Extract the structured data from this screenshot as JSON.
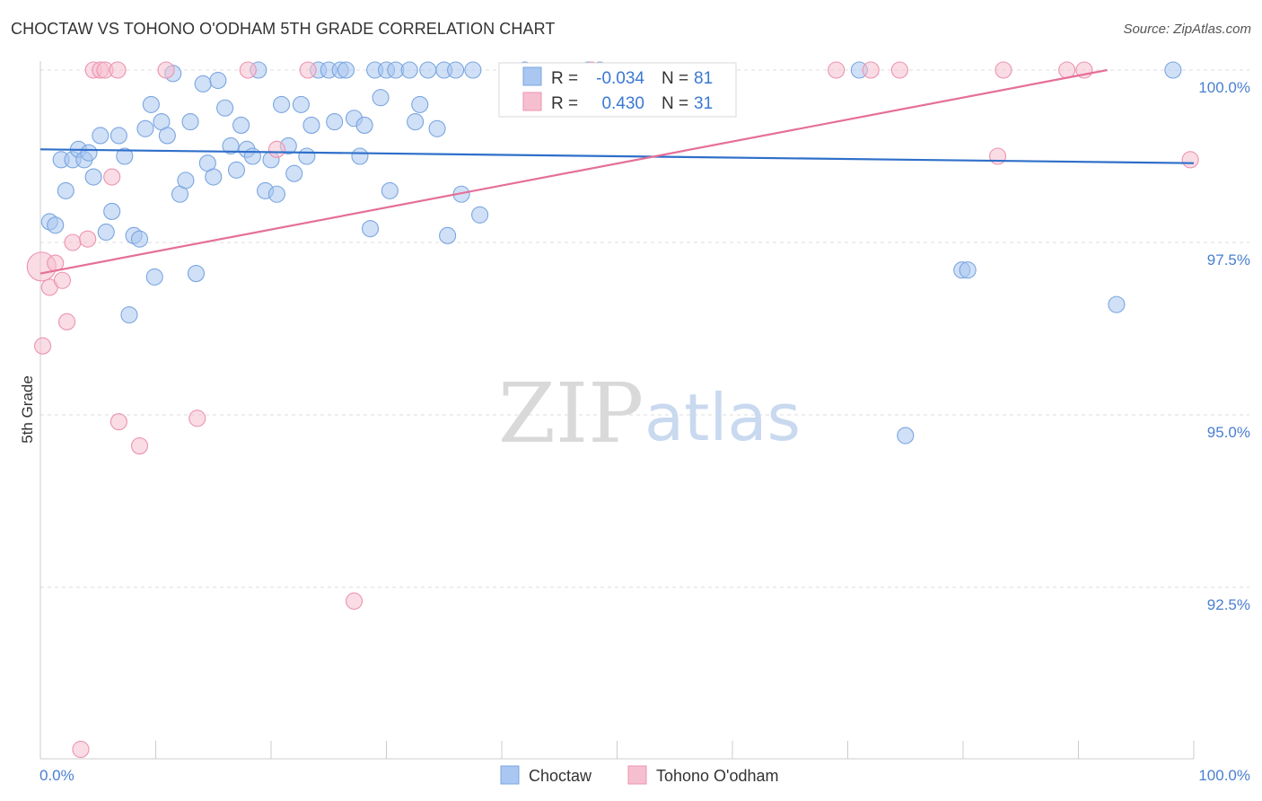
{
  "header": {
    "title": "CHOCTAW VS TOHONO O'ODHAM 5TH GRADE CORRELATION CHART",
    "source": "Source: ZipAtlas.com"
  },
  "watermark": {
    "zip": "ZIP",
    "atlas": "atlas"
  },
  "legend": {
    "r_label": "R =",
    "n_label": "N =",
    "series": [
      {
        "r": "-0.034",
        "n": "81"
      },
      {
        "r": "0.430",
        "n": "31"
      }
    ]
  },
  "colors": {
    "choctaw_fill": "#a9c7f0",
    "choctaw_stroke": "#7aa6e0",
    "choctaw_line": "#2f6fc9",
    "tohono_fill": "#f6bfd0",
    "tohono_stroke": "#ec93b0",
    "tohono_line": "#e56f97",
    "tick_text": "#4a7fd0",
    "grid": "#dddddd"
  },
  "chart_data": {
    "type": "scatter",
    "title": "CHOCTAW VS TOHONO O'ODHAM 5TH GRADE CORRELATION CHART",
    "xlabel": "",
    "ylabel": "5th Grade",
    "xlim": [
      0,
      100
    ],
    "ylim": [
      90.0,
      100.3
    ],
    "x_tick_labels": [
      "0.0%",
      "100.0%"
    ],
    "y_ticks": [
      {
        "value": 100.0,
        "label": "100.0%"
      },
      {
        "value": 97.5,
        "label": "97.5%"
      },
      {
        "value": 95.0,
        "label": "95.0%"
      },
      {
        "value": 92.5,
        "label": "92.5%"
      }
    ],
    "series": [
      {
        "name": "Choctaw",
        "r": -0.034,
        "n": 81,
        "trend": {
          "x": [
            0,
            100
          ],
          "y": [
            98.85,
            98.65
          ]
        },
        "points": [
          {
            "x": 0.8,
            "y": 97.8
          },
          {
            "x": 1.3,
            "y": 97.75
          },
          {
            "x": 1.8,
            "y": 98.7
          },
          {
            "x": 2.2,
            "y": 98.25
          },
          {
            "x": 2.8,
            "y": 98.7
          },
          {
            "x": 3.3,
            "y": 98.85
          },
          {
            "x": 3.8,
            "y": 98.7
          },
          {
            "x": 4.2,
            "y": 98.8
          },
          {
            "x": 4.6,
            "y": 98.45
          },
          {
            "x": 5.2,
            "y": 99.05
          },
          {
            "x": 5.7,
            "y": 97.65
          },
          {
            "x": 6.2,
            "y": 97.95
          },
          {
            "x": 6.8,
            "y": 99.05
          },
          {
            "x": 7.3,
            "y": 98.75
          },
          {
            "x": 7.7,
            "y": 96.45
          },
          {
            "x": 8.1,
            "y": 97.6
          },
          {
            "x": 8.6,
            "y": 97.55
          },
          {
            "x": 9.1,
            "y": 99.15
          },
          {
            "x": 9.6,
            "y": 99.5
          },
          {
            "x": 9.9,
            "y": 97.0
          },
          {
            "x": 10.5,
            "y": 99.25
          },
          {
            "x": 11.0,
            "y": 99.05
          },
          {
            "x": 11.5,
            "y": 99.95
          },
          {
            "x": 12.1,
            "y": 98.2
          },
          {
            "x": 12.6,
            "y": 98.4
          },
          {
            "x": 13.0,
            "y": 99.25
          },
          {
            "x": 13.5,
            "y": 97.05
          },
          {
            "x": 14.1,
            "y": 99.8
          },
          {
            "x": 14.5,
            "y": 98.65
          },
          {
            "x": 15.0,
            "y": 98.45
          },
          {
            "x": 15.4,
            "y": 99.85
          },
          {
            "x": 16.0,
            "y": 99.45
          },
          {
            "x": 16.5,
            "y": 98.9
          },
          {
            "x": 17.0,
            "y": 98.55
          },
          {
            "x": 17.4,
            "y": 99.2
          },
          {
            "x": 17.9,
            "y": 98.85
          },
          {
            "x": 18.4,
            "y": 98.75
          },
          {
            "x": 18.9,
            "y": 100.0
          },
          {
            "x": 19.5,
            "y": 98.25
          },
          {
            "x": 20.0,
            "y": 98.7
          },
          {
            "x": 20.5,
            "y": 98.2
          },
          {
            "x": 20.9,
            "y": 99.5
          },
          {
            "x": 21.5,
            "y": 98.9
          },
          {
            "x": 22.0,
            "y": 98.5
          },
          {
            "x": 22.6,
            "y": 99.5
          },
          {
            "x": 23.1,
            "y": 98.75
          },
          {
            "x": 23.5,
            "y": 99.2
          },
          {
            "x": 24.1,
            "y": 100.0
          },
          {
            "x": 25.0,
            "y": 100.0
          },
          {
            "x": 25.5,
            "y": 99.25
          },
          {
            "x": 26.0,
            "y": 100.0
          },
          {
            "x": 26.5,
            "y": 100.0
          },
          {
            "x": 27.2,
            "y": 99.3
          },
          {
            "x": 27.7,
            "y": 98.75
          },
          {
            "x": 28.1,
            "y": 99.2
          },
          {
            "x": 28.6,
            "y": 97.7
          },
          {
            "x": 29.0,
            "y": 100.0
          },
          {
            "x": 29.5,
            "y": 99.6
          },
          {
            "x": 30.0,
            "y": 100.0
          },
          {
            "x": 30.3,
            "y": 98.25
          },
          {
            "x": 30.8,
            "y": 100.0
          },
          {
            "x": 32.0,
            "y": 100.0
          },
          {
            "x": 32.5,
            "y": 99.25
          },
          {
            "x": 32.9,
            "y": 99.5
          },
          {
            "x": 33.6,
            "y": 100.0
          },
          {
            "x": 34.4,
            "y": 99.15
          },
          {
            "x": 35.0,
            "y": 100.0
          },
          {
            "x": 35.3,
            "y": 97.6
          },
          {
            "x": 36.0,
            "y": 100.0
          },
          {
            "x": 36.5,
            "y": 98.2
          },
          {
            "x": 37.5,
            "y": 100.0
          },
          {
            "x": 38.1,
            "y": 97.9
          },
          {
            "x": 42.0,
            "y": 100.0
          },
          {
            "x": 47.5,
            "y": 100.0
          },
          {
            "x": 48.5,
            "y": 100.0
          },
          {
            "x": 71.0,
            "y": 100.0
          },
          {
            "x": 75.0,
            "y": 94.7
          },
          {
            "x": 79.9,
            "y": 97.1
          },
          {
            "x": 80.4,
            "y": 97.1
          },
          {
            "x": 93.3,
            "y": 96.6
          },
          {
            "x": 98.2,
            "y": 100.0
          }
        ]
      },
      {
        "name": "Tohono O'odham",
        "r": 0.43,
        "n": 31,
        "trend": {
          "x": [
            0,
            92.5
          ],
          "y": [
            97.05,
            100.0
          ]
        },
        "points": [
          {
            "x": 0.1,
            "y": 97.15
          },
          {
            "x": 0.2,
            "y": 96.0
          },
          {
            "x": 0.8,
            "y": 96.85
          },
          {
            "x": 1.3,
            "y": 97.2
          },
          {
            "x": 1.9,
            "y": 96.95
          },
          {
            "x": 2.3,
            "y": 96.35
          },
          {
            "x": 2.8,
            "y": 97.5
          },
          {
            "x": 3.5,
            "y": 90.15
          },
          {
            "x": 4.1,
            "y": 97.55
          },
          {
            "x": 4.6,
            "y": 100.0
          },
          {
            "x": 5.2,
            "y": 100.0
          },
          {
            "x": 5.6,
            "y": 100.0
          },
          {
            "x": 6.2,
            "y": 98.45
          },
          {
            "x": 6.7,
            "y": 100.0
          },
          {
            "x": 6.8,
            "y": 94.9
          },
          {
            "x": 8.6,
            "y": 94.55
          },
          {
            "x": 10.9,
            "y": 100.0
          },
          {
            "x": 13.6,
            "y": 94.95
          },
          {
            "x": 18.0,
            "y": 100.0
          },
          {
            "x": 20.5,
            "y": 98.85
          },
          {
            "x": 23.2,
            "y": 100.0
          },
          {
            "x": 27.2,
            "y": 92.3
          },
          {
            "x": 47.8,
            "y": 100.0
          },
          {
            "x": 69.0,
            "y": 100.0
          },
          {
            "x": 72.0,
            "y": 100.0
          },
          {
            "x": 74.5,
            "y": 100.0
          },
          {
            "x": 83.0,
            "y": 98.75
          },
          {
            "x": 83.5,
            "y": 100.0
          },
          {
            "x": 89.0,
            "y": 100.0
          },
          {
            "x": 90.5,
            "y": 100.0
          },
          {
            "x": 99.7,
            "y": 98.7
          }
        ]
      }
    ]
  }
}
